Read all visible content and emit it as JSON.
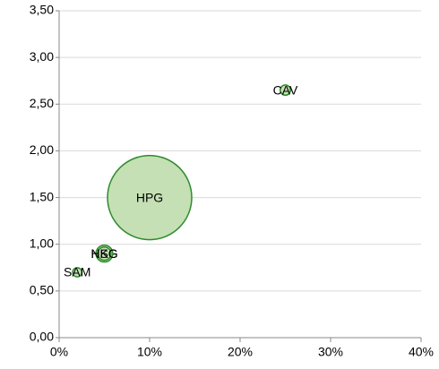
{
  "chart_data": {
    "type": "bubble",
    "labels": [
      "SAM",
      "HSG",
      "NKG",
      "HPG",
      "CAV"
    ],
    "x": [
      2,
      5,
      5,
      10,
      25
    ],
    "values": [
      0.7,
      0.9,
      0.9,
      1.5,
      2.65
    ],
    "sizes": [
      1.2,
      4,
      2.5,
      100,
      1.5
    ],
    "color": "#c5e0b4",
    "edge_color": "#2e8b2e",
    "xlim": [
      0,
      40
    ],
    "xticks": [
      {
        "value": 0,
        "label": "0%"
      },
      {
        "value": 10,
        "label": "10%"
      },
      {
        "value": 20,
        "label": "20%"
      },
      {
        "value": 30,
        "label": "30%"
      },
      {
        "value": 40,
        "label": "40%"
      }
    ],
    "ylim": [
      0,
      3.5
    ],
    "yticks": [
      {
        "value": 0,
        "label": "0,00"
      },
      {
        "value": 0.5,
        "label": "0,50"
      },
      {
        "value": 1,
        "label": "1,00"
      },
      {
        "value": 1.5,
        "label": "1,50"
      },
      {
        "value": 2,
        "label": "2,00"
      },
      {
        "value": 2.5,
        "label": "2,50"
      },
      {
        "value": 3,
        "label": "3,00"
      },
      {
        "value": 3.5,
        "label": "3,50"
      }
    ],
    "grid": true
  }
}
